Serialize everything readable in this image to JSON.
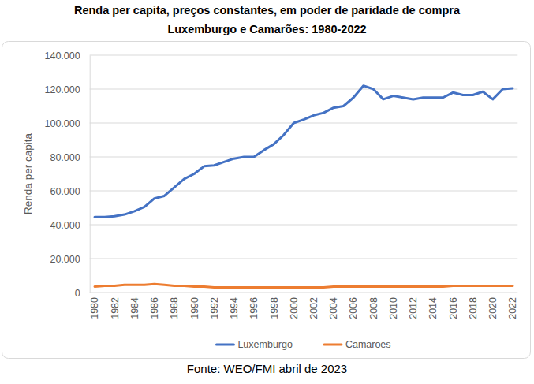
{
  "chart_data": {
    "type": "line",
    "title": "Renda per capita, preços constantes, em poder de paridade de compra",
    "subtitle": "Luxemburgo e Camarões: 1980-2022",
    "y_label": "Renda per capita",
    "annotations": [
      "Fonte: WEO/FMI abril de 2023"
    ],
    "categories": [
      "1980",
      null,
      "1982",
      null,
      "1984",
      null,
      "1986",
      null,
      "1988",
      null,
      "1990",
      null,
      "1992",
      null,
      "1994",
      null,
      "1996",
      null,
      "1998",
      null,
      "2000",
      null,
      "2002",
      null,
      "2004",
      null,
      "2006",
      null,
      "2008",
      null,
      "2010",
      null,
      "2012",
      null,
      "2014",
      null,
      "2016",
      null,
      "2018",
      null,
      "2020",
      null,
      "2022"
    ],
    "series": [
      {
        "name": "Luxemburgo",
        "color": "#4472c4",
        "values": [
          44500,
          44500,
          45000,
          46000,
          48000,
          50500,
          55500,
          57000,
          62000,
          67000,
          70000,
          74500,
          75000,
          77000,
          79000,
          80000,
          80000,
          84000,
          87500,
          93000,
          100000,
          102000,
          104500,
          106000,
          109000,
          110000,
          115000,
          122000,
          120000,
          114000,
          116000,
          115000,
          114000,
          115000,
          115000,
          115000,
          118000,
          116500,
          116500,
          118500,
          114000,
          120000,
          120500
        ]
      },
      {
        "name": "Camarões",
        "color": "#ed7d31",
        "values": [
          3500,
          4000,
          4000,
          4500,
          4500,
          4500,
          5000,
          4500,
          4000,
          4000,
          3500,
          3500,
          3000,
          3000,
          3000,
          3000,
          3000,
          3000,
          3000,
          3000,
          3000,
          3000,
          3000,
          3000,
          3500,
          3500,
          3500,
          3500,
          3500,
          3500,
          3500,
          3500,
          3500,
          3500,
          3500,
          3500,
          4000,
          4000,
          4000,
          4000,
          4000,
          4000,
          4000
        ]
      }
    ],
    "ylim": [
      0,
      140000
    ],
    "yticks": [
      0,
      {
        "value": 20000,
        "label": "20.000"
      },
      {
        "value": 40000,
        "label": "40.000"
      },
      {
        "value": 60000,
        "label": "60.000"
      },
      {
        "value": 80000,
        "label": "80.000"
      },
      {
        "value": 100000,
        "label": "100.000"
      },
      {
        "value": 120000,
        "label": "120.000"
      },
      {
        "value": 140000,
        "label": "140.000"
      }
    ],
    "grid": true,
    "legend": "bottom"
  }
}
